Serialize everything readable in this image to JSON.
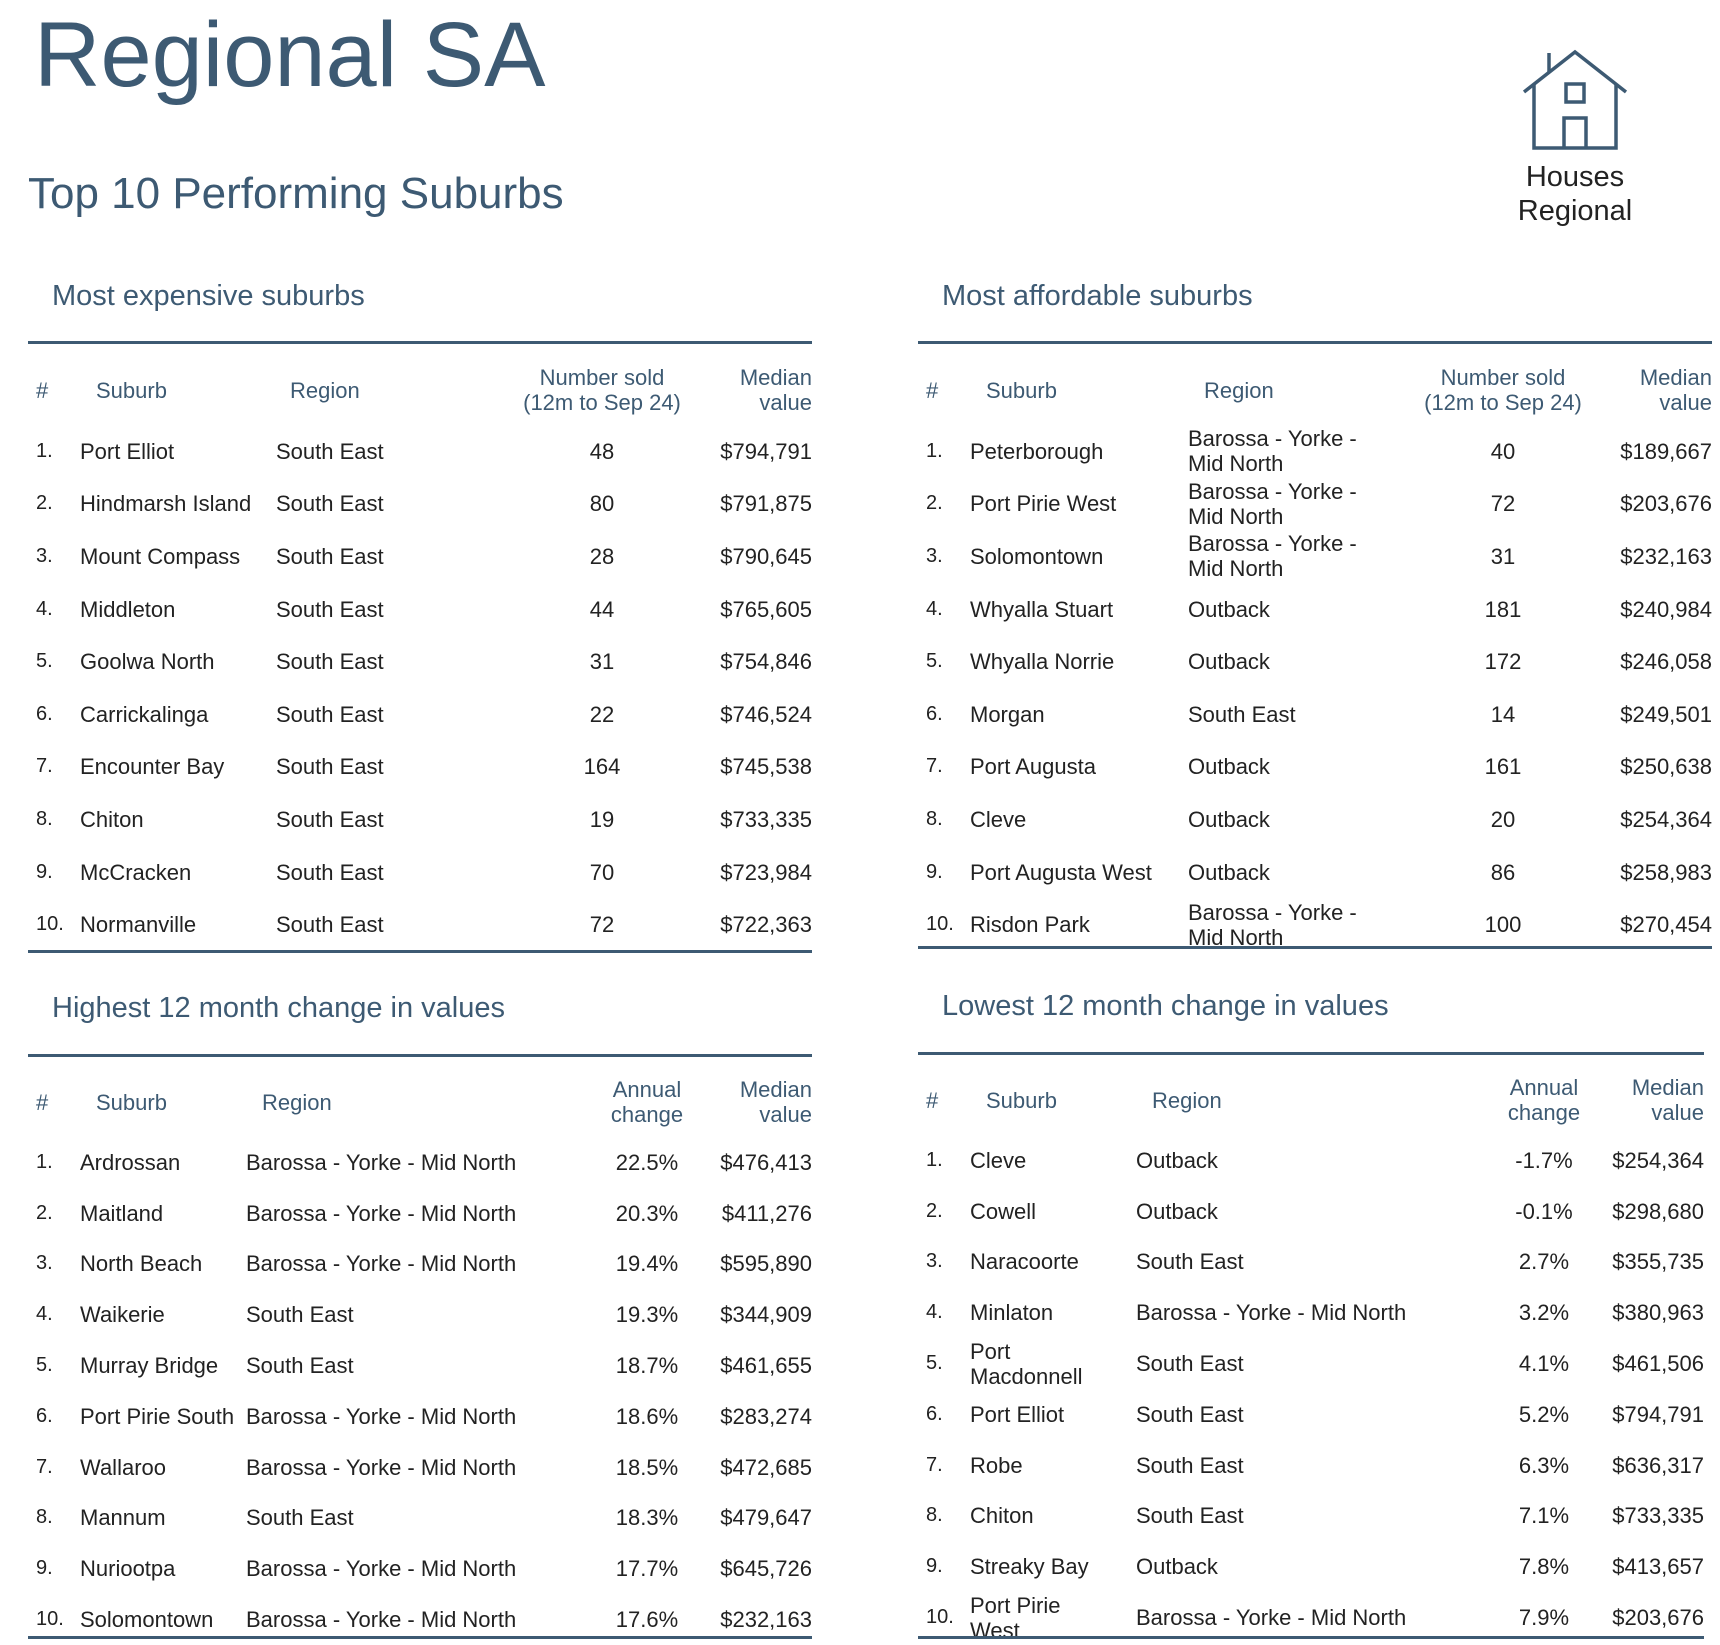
{
  "header": {
    "title": "Regional SA",
    "subtitle": "Top 10 Performing Suburbs",
    "badge_line1": "Houses",
    "badge_line2": "Regional",
    "badge_icon": "house-icon"
  },
  "colors": {
    "accent": "#3d5a73",
    "text": "#222222"
  },
  "most_expensive": {
    "heading": "Most expensive suburbs",
    "columns": [
      "#",
      "Suburb",
      "Region",
      "Number sold (12m to Sep 24)",
      "Median value"
    ],
    "rows": [
      {
        "rank": "1.",
        "suburb": "Port Elliot",
        "region": "South East",
        "sold": "48",
        "median": "$794,791"
      },
      {
        "rank": "2.",
        "suburb": "Hindmarsh Island",
        "region": "South East",
        "sold": "80",
        "median": "$791,875"
      },
      {
        "rank": "3.",
        "suburb": "Mount Compass",
        "region": "South East",
        "sold": "28",
        "median": "$790,645"
      },
      {
        "rank": "4.",
        "suburb": "Middleton",
        "region": "South East",
        "sold": "44",
        "median": "$765,605"
      },
      {
        "rank": "5.",
        "suburb": "Goolwa North",
        "region": "South East",
        "sold": "31",
        "median": "$754,846"
      },
      {
        "rank": "6.",
        "suburb": "Carrickalinga",
        "region": "South East",
        "sold": "22",
        "median": "$746,524"
      },
      {
        "rank": "7.",
        "suburb": "Encounter Bay",
        "region": "South East",
        "sold": "164",
        "median": "$745,538"
      },
      {
        "rank": "8.",
        "suburb": "Chiton",
        "region": "South East",
        "sold": "19",
        "median": "$733,335"
      },
      {
        "rank": "9.",
        "suburb": "McCracken",
        "region": "South East",
        "sold": "70",
        "median": "$723,984"
      },
      {
        "rank": "10.",
        "suburb": "Normanville",
        "region": "South East",
        "sold": "72",
        "median": "$722,363"
      }
    ]
  },
  "most_affordable": {
    "heading": "Most affordable suburbs",
    "columns": [
      "#",
      "Suburb",
      "Region",
      "Number sold (12m to Sep 24)",
      "Median value"
    ],
    "rows": [
      {
        "rank": "1.",
        "suburb": "Peterborough",
        "region": "Barossa - Yorke - Mid North",
        "sold": "40",
        "median": "$189,667"
      },
      {
        "rank": "2.",
        "suburb": "Port Pirie West",
        "region": "Barossa - Yorke - Mid North",
        "sold": "72",
        "median": "$203,676"
      },
      {
        "rank": "3.",
        "suburb": "Solomontown",
        "region": "Barossa - Yorke - Mid North",
        "sold": "31",
        "median": "$232,163"
      },
      {
        "rank": "4.",
        "suburb": "Whyalla Stuart",
        "region": "Outback",
        "sold": "181",
        "median": "$240,984"
      },
      {
        "rank": "5.",
        "suburb": "Whyalla Norrie",
        "region": "Outback",
        "sold": "172",
        "median": "$246,058"
      },
      {
        "rank": "6.",
        "suburb": "Morgan",
        "region": "South East",
        "sold": "14",
        "median": "$249,501"
      },
      {
        "rank": "7.",
        "suburb": "Port Augusta",
        "region": "Outback",
        "sold": "161",
        "median": "$250,638"
      },
      {
        "rank": "8.",
        "suburb": "Cleve",
        "region": "Outback",
        "sold": "20",
        "median": "$254,364"
      },
      {
        "rank": "9.",
        "suburb": "Port Augusta West",
        "region": "Outback",
        "sold": "86",
        "median": "$258,983"
      },
      {
        "rank": "10.",
        "suburb": "Risdon Park",
        "region": "Barossa - Yorke - Mid North",
        "sold": "100",
        "median": "$270,454"
      }
    ]
  },
  "highest_change": {
    "heading": "Highest 12 month change in values",
    "columns": [
      "#",
      "Suburb",
      "Region",
      "Annual change",
      "Median value"
    ],
    "rows": [
      {
        "rank": "1.",
        "suburb": "Ardrossan",
        "region": "Barossa - Yorke - Mid North",
        "change": "22.5%",
        "median": "$476,413"
      },
      {
        "rank": "2.",
        "suburb": "Maitland",
        "region": "Barossa - Yorke - Mid North",
        "change": "20.3%",
        "median": "$411,276"
      },
      {
        "rank": "3.",
        "suburb": "North Beach",
        "region": "Barossa - Yorke - Mid North",
        "change": "19.4%",
        "median": "$595,890"
      },
      {
        "rank": "4.",
        "suburb": "Waikerie",
        "region": "South East",
        "change": "19.3%",
        "median": "$344,909"
      },
      {
        "rank": "5.",
        "suburb": "Murray Bridge",
        "region": "South East",
        "change": "18.7%",
        "median": "$461,655"
      },
      {
        "rank": "6.",
        "suburb": "Port Pirie South",
        "region": "Barossa - Yorke - Mid North",
        "change": "18.6%",
        "median": "$283,274"
      },
      {
        "rank": "7.",
        "suburb": "Wallaroo",
        "region": "Barossa - Yorke - Mid North",
        "change": "18.5%",
        "median": "$472,685"
      },
      {
        "rank": "8.",
        "suburb": "Mannum",
        "region": "South East",
        "change": "18.3%",
        "median": "$479,647"
      },
      {
        "rank": "9.",
        "suburb": "Nuriootpa",
        "region": "Barossa - Yorke - Mid North",
        "change": "17.7%",
        "median": "$645,726"
      },
      {
        "rank": "10.",
        "suburb": "Solomontown",
        "region": "Barossa - Yorke - Mid North",
        "change": "17.6%",
        "median": "$232,163"
      }
    ]
  },
  "lowest_change": {
    "heading": "Lowest 12 month change in values",
    "columns": [
      "#",
      "Suburb",
      "Region",
      "Annual change",
      "Median value"
    ],
    "rows": [
      {
        "rank": "1.",
        "suburb": "Cleve",
        "region": "Outback",
        "change": "-1.7%",
        "median": "$254,364"
      },
      {
        "rank": "2.",
        "suburb": "Cowell",
        "region": "Outback",
        "change": "-0.1%",
        "median": "$298,680"
      },
      {
        "rank": "3.",
        "suburb": "Naracoorte",
        "region": "South East",
        "change": "2.7%",
        "median": "$355,735"
      },
      {
        "rank": "4.",
        "suburb": "Minlaton",
        "region": "Barossa - Yorke - Mid North",
        "change": "3.2%",
        "median": "$380,963"
      },
      {
        "rank": "5.",
        "suburb": "Port Macdonnell",
        "region": "South East",
        "change": "4.1%",
        "median": "$461,506"
      },
      {
        "rank": "6.",
        "suburb": "Port Elliot",
        "region": "South East",
        "change": "5.2%",
        "median": "$794,791"
      },
      {
        "rank": "7.",
        "suburb": "Robe",
        "region": "South East",
        "change": "6.3%",
        "median": "$636,317"
      },
      {
        "rank": "8.",
        "suburb": "Chiton",
        "region": "South East",
        "change": "7.1%",
        "median": "$733,335"
      },
      {
        "rank": "9.",
        "suburb": "Streaky Bay",
        "region": "Outback",
        "change": "7.8%",
        "median": "$413,657"
      },
      {
        "rank": "10.",
        "suburb": "Port Pirie West",
        "region": "Barossa - Yorke - Mid North",
        "change": "7.9%",
        "median": "$203,676"
      }
    ]
  }
}
